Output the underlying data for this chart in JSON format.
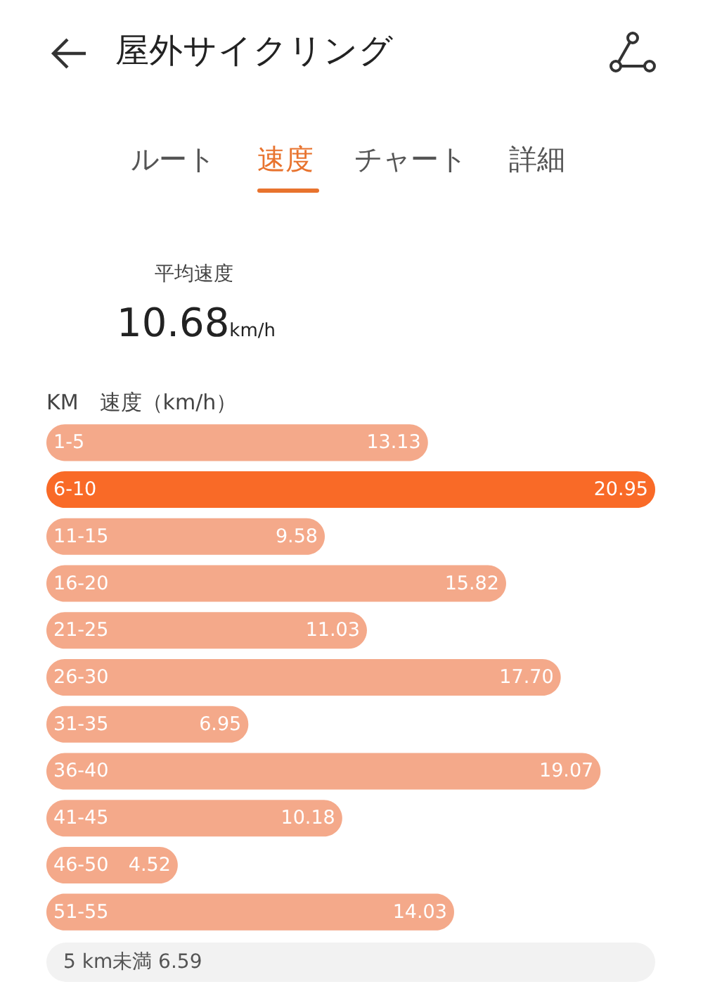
{
  "chart_data": {
    "type": "bar",
    "orientation": "horizontal",
    "title": "屋外サイクリング",
    "subtitle": "速度",
    "annotations": [
      "ルート",
      "チャート",
      "詳細",
      "平均速度",
      "10.68km/h",
      "5 km未満 6.59"
    ],
    "ylabel": "KM",
    "xlabel": "速度（km/h）",
    "categories": [
      "1-5",
      "6-10",
      "11-15",
      "16-20",
      "21-25",
      "26-30",
      "31-35",
      "36-40",
      "41-45",
      "46-50",
      "51-55"
    ],
    "values": [
      13.13,
      20.95,
      9.58,
      15.82,
      11.03,
      17.7,
      6.95,
      19.07,
      10.18,
      4.52,
      14.03
    ],
    "value_labels": [
      "13.13",
      "20.95",
      "9.58",
      "15.82",
      "11.03",
      "17.70",
      "6.95",
      "19.07",
      "10.18",
      "4.52",
      "14.03"
    ],
    "colors": [
      "#f4a98a",
      "#f96a27",
      "#f4a98a",
      "#f4a98a",
      "#f4a98a",
      "#f4a98a",
      "#f4a98a",
      "#f4a98a",
      "#f4a98a",
      "#f4a98a",
      "#f4a98a"
    ]
  }
}
